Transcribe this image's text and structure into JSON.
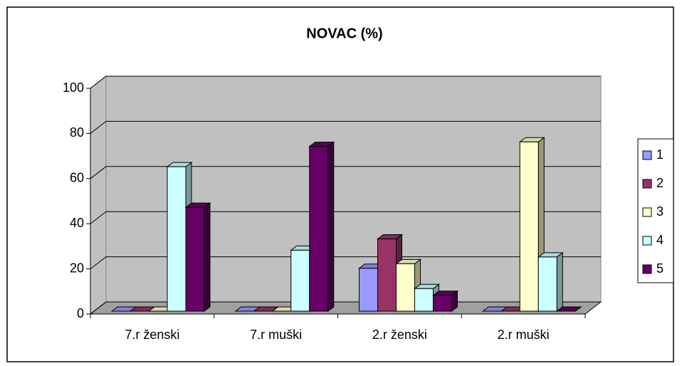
{
  "chart_data": {
    "type": "bar3d",
    "title": "NOVAC (%)",
    "categories": [
      "7.r ženski",
      "7.r muški",
      "2.r ženski",
      "2.r muški"
    ],
    "series": [
      {
        "name": "1",
        "color": "#9999ff",
        "values": [
          0,
          0,
          19,
          0
        ]
      },
      {
        "name": "2",
        "color": "#993366",
        "values": [
          0,
          0,
          32,
          0
        ]
      },
      {
        "name": "3",
        "color": "#ffffcc",
        "values": [
          0,
          0,
          21,
          75
        ]
      },
      {
        "name": "4",
        "color": "#ccffff",
        "values": [
          64,
          27,
          10,
          24
        ]
      },
      {
        "name": "5",
        "color": "#660066",
        "values": [
          46,
          73,
          7,
          0
        ]
      }
    ],
    "ylim": [
      0,
      100
    ],
    "yticks": [
      0,
      20,
      40,
      60,
      80,
      100
    ],
    "grid": true,
    "legend": "right"
  }
}
